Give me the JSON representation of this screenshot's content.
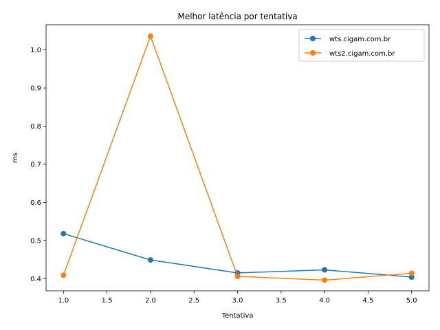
{
  "chart_data": {
    "type": "line",
    "title": "Melhor latência por tentativa",
    "xlabel": "Tentativa",
    "ylabel": "ms",
    "xlim": [
      0.8,
      5.2
    ],
    "ylim": [
      0.368,
      1.066
    ],
    "xticks": [
      1.0,
      1.5,
      2.0,
      2.5,
      3.0,
      3.5,
      4.0,
      4.5,
      5.0
    ],
    "xtick_labels": [
      "1.0",
      "1.5",
      "2.0",
      "2.5",
      "3.0",
      "3.5",
      "4.0",
      "4.5",
      "5.0"
    ],
    "yticks": [
      0.4,
      0.5,
      0.6,
      0.7,
      0.8,
      0.9,
      1.0
    ],
    "ytick_labels": [
      "0.4",
      "0.5",
      "0.6",
      "0.7",
      "0.8",
      "0.9",
      "1.0"
    ],
    "legend_position": "top-right",
    "grid": false,
    "x": [
      1,
      2,
      3,
      4,
      5
    ],
    "series": [
      {
        "name": "wts.cigam.com.br",
        "color": "#1f77b4",
        "values": [
          0.518,
          0.449,
          0.415,
          0.423,
          0.404
        ]
      },
      {
        "name": "wts2.cigam.com.br",
        "color": "#ff7f0e",
        "values": [
          0.409,
          1.036,
          0.406,
          0.396,
          0.414
        ]
      }
    ]
  }
}
